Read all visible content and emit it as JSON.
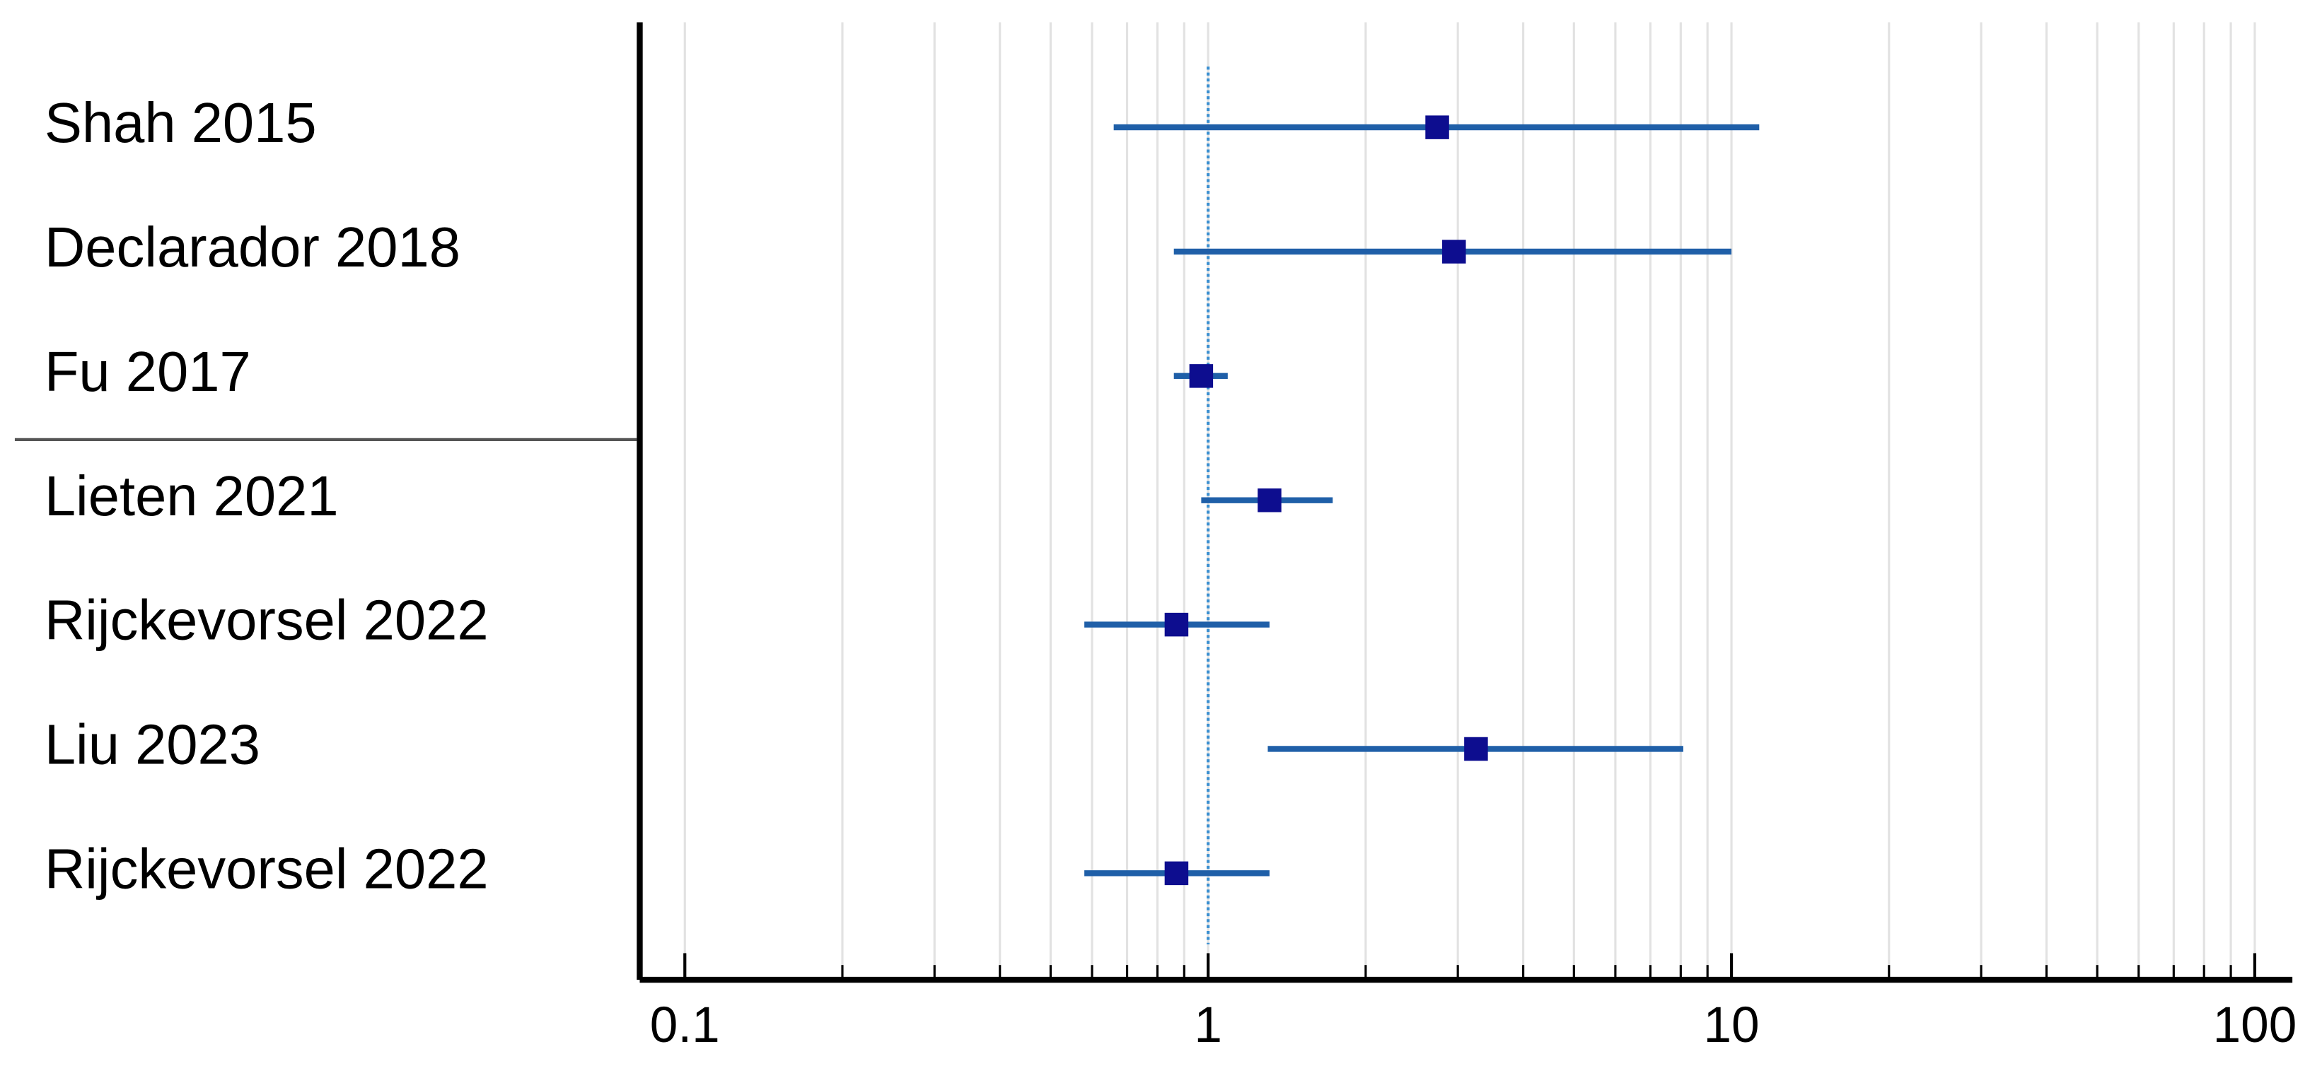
{
  "chart_data": {
    "type": "forest",
    "categories": [
      "Shah 2015",
      "Declarador 2018",
      "Fu 2017",
      "Lieten 2021",
      "Rijckevorsel 2022",
      "Liu 2023",
      "Rijckevorsel 2022"
    ],
    "values": [
      2.74,
      2.95,
      0.97,
      1.31,
      0.87,
      3.25,
      0.87
    ],
    "lower": [
      0.66,
      0.86,
      0.86,
      0.97,
      0.58,
      1.3,
      0.58
    ],
    "upper": [
      11.3,
      10.0,
      1.09,
      1.73,
      1.31,
      8.09,
      1.31
    ],
    "color": "#1f5fa8",
    "marker_color": "#0d0d8f",
    "x_scale": "log",
    "xlim": [
      0.082,
      118
    ],
    "xticks": [
      0.1,
      1,
      10,
      100
    ],
    "minor_xticks": [
      0.2,
      0.3,
      0.4,
      0.5,
      0.6,
      0.7,
      0.8,
      0.9,
      2,
      3,
      4,
      5,
      6,
      7,
      8,
      9,
      20,
      30,
      40,
      50,
      60,
      70,
      80,
      90
    ],
    "grid": true,
    "ref_line": 1
  }
}
